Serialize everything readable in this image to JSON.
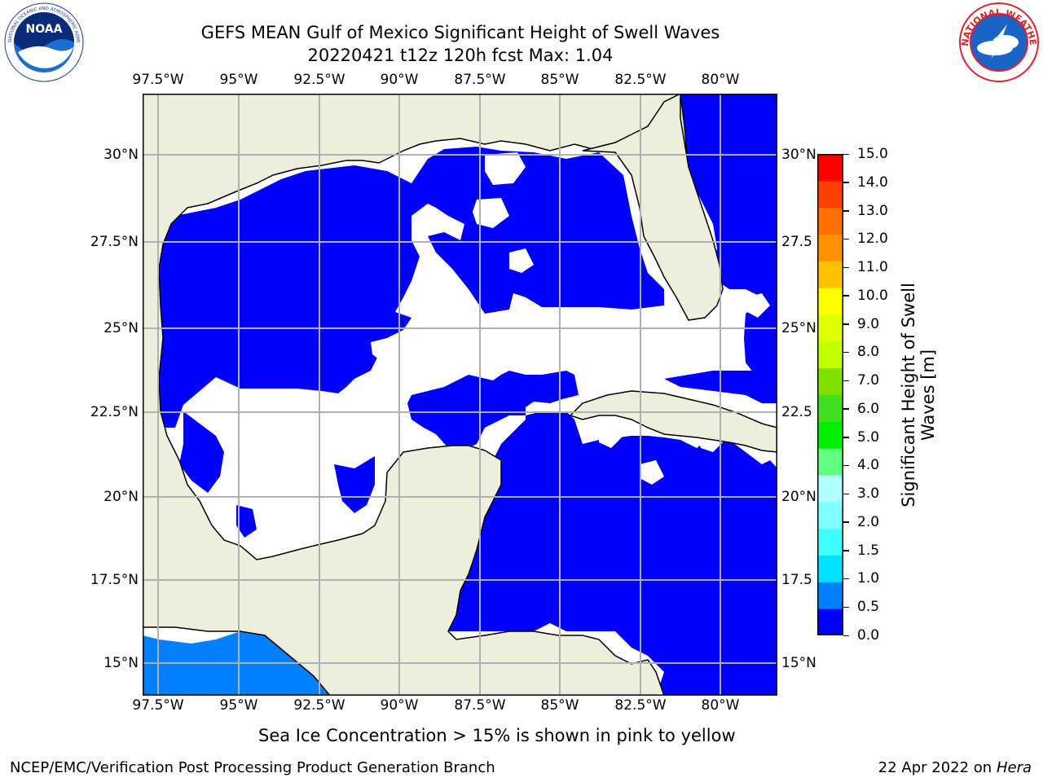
{
  "title": {
    "line1": "GEFS MEAN Gulf of Mexico Significant Height of Swell Waves",
    "line2": "20220421 t12z 120h fcst   Max: 1.04"
  },
  "logos": {
    "left": "NOAA",
    "left_ring": "NATIONAL OCEANIC AND ATMOSPHERIC ADMINISTRATION · U.S. DEPARTMENT OF COMMERCE",
    "right_ring": "NATIONAL WEATHER SERVICE"
  },
  "map": {
    "lon_labels": [
      "97.5°W",
      "95°W",
      "92.5°W",
      "90°W",
      "87.5°W",
      "85°W",
      "82.5°W",
      "80°W"
    ],
    "lat_labels_left": [
      "30°N",
      "27.5°N",
      "25°N",
      "22.5°N",
      "20°N",
      "17.5°N",
      "15°N"
    ],
    "lat_labels_right": [
      "30°N",
      "27.5",
      "25°N",
      "22.5",
      "20°N",
      "17.5",
      "15°N"
    ],
    "colors": {
      "land": "#eeeedd",
      "swell_0_0_5": "#0000ff",
      "swell_0_5_1_0": "#0080ff",
      "grid": "#b0b0b0"
    }
  },
  "colorbar": {
    "label_line1": "Significant Height of Swell",
    "label_line2": "Waves [m]",
    "ticks": [
      "15.0",
      "14.0",
      "13.0",
      "12.0",
      "11.0",
      "10.0",
      "9.0",
      "8.0",
      "7.0",
      "6.0",
      "5.0",
      "4.0",
      "3.0",
      "2.0",
      "1.5",
      "1.0",
      "0.5",
      "0.0"
    ],
    "colors_bottom_to_top": [
      "#0000ff",
      "#0080ff",
      "#00e0ff",
      "#40ffff",
      "#80ffff",
      "#b0ffff",
      "#60ff80",
      "#00f000",
      "#40e020",
      "#80e000",
      "#c0ff00",
      "#e0ff00",
      "#ffff00",
      "#ffc000",
      "#ff9000",
      "#ff7000",
      "#ff4000",
      "#ff0000"
    ]
  },
  "caption": "Sea Ice Concentration > 15% is shown in pink to yellow",
  "footer": {
    "left": "NCEP/EMC/Verification Post Processing Product Generation Branch",
    "right_date": "22 Apr 2022 on ",
    "right_machine": "Hera"
  }
}
